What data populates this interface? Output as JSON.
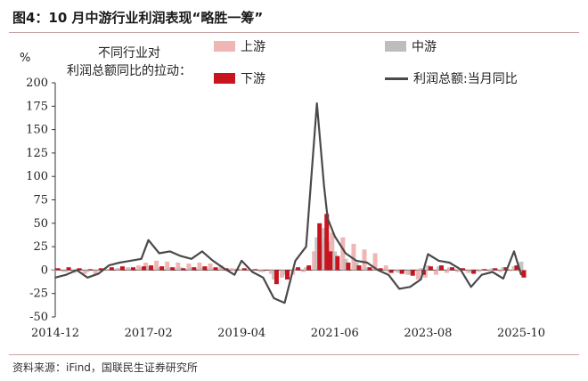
{
  "header": {
    "title": "图4：10 月中游行业利润表现“略胜一筹”"
  },
  "source": "资料来源：iFind，国联民生证券研究所",
  "chart_data": {
    "type": "bar",
    "title": "",
    "ylabel": "%",
    "legend_title_line1": "不同行业对",
    "legend_title_line2": "利润总额同比的拉动：",
    "ylim": [
      -50,
      200
    ],
    "yticks": [
      -50,
      -25,
      0,
      25,
      50,
      75,
      100,
      125,
      150,
      175,
      200
    ],
    "x_tick_labels": [
      "2014-12",
      "2017-02",
      "2019-04",
      "2021-06",
      "2023-08",
      "2025-10"
    ],
    "x_range": [
      "2014-12",
      "2025-10"
    ],
    "colors": {
      "upstream": "#f0b5b5",
      "midstream": "#bdbdbd",
      "downstream": "#c8141e",
      "total": "#4a4a4a"
    },
    "series": [
      {
        "name": "上游",
        "kind": "bar",
        "points": [
          [
            "2014-12",
            1
          ],
          [
            "2015-03",
            -2
          ],
          [
            "2015-06",
            -3
          ],
          [
            "2015-09",
            -4
          ],
          [
            "2015-12",
            -5
          ],
          [
            "2016-03",
            1
          ],
          [
            "2016-06",
            2
          ],
          [
            "2016-09",
            3
          ],
          [
            "2016-12",
            5
          ],
          [
            "2017-02",
            8
          ],
          [
            "2017-05",
            10
          ],
          [
            "2017-08",
            9
          ],
          [
            "2017-11",
            8
          ],
          [
            "2018-02",
            7
          ],
          [
            "2018-05",
            8
          ],
          [
            "2018-08",
            7
          ],
          [
            "2018-11",
            5
          ],
          [
            "2019-02",
            2
          ],
          [
            "2019-04",
            1
          ],
          [
            "2019-07",
            -1
          ],
          [
            "2019-10",
            -2
          ],
          [
            "2020-01",
            -4
          ],
          [
            "2020-04",
            -8
          ],
          [
            "2020-07",
            -5
          ],
          [
            "2020-10",
            -2
          ],
          [
            "2021-01",
            20
          ],
          [
            "2021-03",
            28
          ],
          [
            "2021-04",
            34
          ],
          [
            "2021-06",
            40
          ],
          [
            "2021-09",
            35
          ],
          [
            "2021-12",
            28
          ],
          [
            "2022-03",
            22
          ],
          [
            "2022-06",
            18
          ],
          [
            "2022-09",
            5
          ],
          [
            "2022-12",
            -2
          ],
          [
            "2023-03",
            -5
          ],
          [
            "2023-06",
            -10
          ],
          [
            "2023-08",
            -8
          ],
          [
            "2023-11",
            -5
          ],
          [
            "2024-02",
            -3
          ],
          [
            "2024-05",
            -2
          ],
          [
            "2024-08",
            -3
          ],
          [
            "2024-11",
            -2
          ],
          [
            "2025-02",
            -1
          ],
          [
            "2025-05",
            -2
          ],
          [
            "2025-08",
            -1
          ],
          [
            "2025-10",
            -1
          ]
        ]
      },
      {
        "name": "中游",
        "kind": "bar",
        "points": [
          [
            "2014-12",
            -1
          ],
          [
            "2015-03",
            -2
          ],
          [
            "2015-06",
            -1
          ],
          [
            "2015-09",
            -2
          ],
          [
            "2015-12",
            -1
          ],
          [
            "2016-03",
            1
          ],
          [
            "2016-06",
            2
          ],
          [
            "2016-09",
            2
          ],
          [
            "2016-12",
            3
          ],
          [
            "2017-02",
            4
          ],
          [
            "2017-05",
            3
          ],
          [
            "2017-08",
            3
          ],
          [
            "2017-11",
            3
          ],
          [
            "2018-02",
            3
          ],
          [
            "2018-05",
            3
          ],
          [
            "2018-08",
            2
          ],
          [
            "2018-11",
            1
          ],
          [
            "2019-02",
            -1
          ],
          [
            "2019-04",
            0
          ],
          [
            "2019-07",
            -1
          ],
          [
            "2019-10",
            -2
          ],
          [
            "2020-01",
            -10
          ],
          [
            "2020-04",
            -5
          ],
          [
            "2020-07",
            2
          ],
          [
            "2020-10",
            3
          ],
          [
            "2021-01",
            35
          ],
          [
            "2021-03",
            45
          ],
          [
            "2021-04",
            30
          ],
          [
            "2021-06",
            20
          ],
          [
            "2021-09",
            12
          ],
          [
            "2021-12",
            8
          ],
          [
            "2022-03",
            3
          ],
          [
            "2022-06",
            0
          ],
          [
            "2022-09",
            -2
          ],
          [
            "2022-12",
            -3
          ],
          [
            "2023-03",
            -5
          ],
          [
            "2023-06",
            2
          ],
          [
            "2023-08",
            5
          ],
          [
            "2023-11",
            4
          ],
          [
            "2024-02",
            3
          ],
          [
            "2024-05",
            2
          ],
          [
            "2024-08",
            -3
          ],
          [
            "2024-11",
            1
          ],
          [
            "2025-02",
            2
          ],
          [
            "2025-05",
            3
          ],
          [
            "2025-08",
            4
          ],
          [
            "2025-10",
            9
          ]
        ]
      },
      {
        "name": "下游",
        "kind": "bar",
        "points": [
          [
            "2014-12",
            2
          ],
          [
            "2015-03",
            3
          ],
          [
            "2015-06",
            2
          ],
          [
            "2015-09",
            1
          ],
          [
            "2015-12",
            2
          ],
          [
            "2016-03",
            3
          ],
          [
            "2016-06",
            4
          ],
          [
            "2016-09",
            3
          ],
          [
            "2016-12",
            4
          ],
          [
            "2017-02",
            5
          ],
          [
            "2017-05",
            4
          ],
          [
            "2017-08",
            3
          ],
          [
            "2017-11",
            2
          ],
          [
            "2018-02",
            3
          ],
          [
            "2018-05",
            4
          ],
          [
            "2018-08",
            3
          ],
          [
            "2018-11",
            2
          ],
          [
            "2019-02",
            1
          ],
          [
            "2019-04",
            2
          ],
          [
            "2019-07",
            1
          ],
          [
            "2019-10",
            0
          ],
          [
            "2020-01",
            -15
          ],
          [
            "2020-04",
            -10
          ],
          [
            "2020-07",
            3
          ],
          [
            "2020-10",
            5
          ],
          [
            "2021-01",
            50
          ],
          [
            "2021-03",
            60
          ],
          [
            "2021-04",
            20
          ],
          [
            "2021-06",
            15
          ],
          [
            "2021-09",
            8
          ],
          [
            "2021-12",
            5
          ],
          [
            "2022-03",
            3
          ],
          [
            "2022-06",
            2
          ],
          [
            "2022-09",
            -3
          ],
          [
            "2022-12",
            -4
          ],
          [
            "2023-03",
            -6
          ],
          [
            "2023-06",
            -5
          ],
          [
            "2023-08",
            4
          ],
          [
            "2023-11",
            5
          ],
          [
            "2024-02",
            3
          ],
          [
            "2024-05",
            2
          ],
          [
            "2024-08",
            -4
          ],
          [
            "2024-11",
            1
          ],
          [
            "2025-02",
            2
          ],
          [
            "2025-05",
            3
          ],
          [
            "2025-08",
            5
          ],
          [
            "2025-10",
            -8
          ]
        ]
      },
      {
        "name": "利润总额:当月同比",
        "kind": "line",
        "points": [
          [
            "2014-12",
            -8
          ],
          [
            "2015-03",
            -5
          ],
          [
            "2015-06",
            0
          ],
          [
            "2015-09",
            -8
          ],
          [
            "2015-12",
            -4
          ],
          [
            "2016-03",
            5
          ],
          [
            "2016-06",
            8
          ],
          [
            "2016-09",
            10
          ],
          [
            "2016-12",
            12
          ],
          [
            "2017-02",
            32
          ],
          [
            "2017-05",
            18
          ],
          [
            "2017-08",
            20
          ],
          [
            "2017-11",
            15
          ],
          [
            "2018-02",
            12
          ],
          [
            "2018-05",
            20
          ],
          [
            "2018-08",
            10
          ],
          [
            "2018-11",
            2
          ],
          [
            "2019-02",
            -5
          ],
          [
            "2019-04",
            10
          ],
          [
            "2019-07",
            -2
          ],
          [
            "2019-10",
            -8
          ],
          [
            "2020-01",
            -30
          ],
          [
            "2020-04",
            -35
          ],
          [
            "2020-07",
            10
          ],
          [
            "2020-10",
            25
          ],
          [
            "2021-01",
            178
          ],
          [
            "2021-03",
            90
          ],
          [
            "2021-04",
            55
          ],
          [
            "2021-06",
            36
          ],
          [
            "2021-09",
            18
          ],
          [
            "2021-12",
            10
          ],
          [
            "2022-03",
            8
          ],
          [
            "2022-06",
            0
          ],
          [
            "2022-09",
            -5
          ],
          [
            "2022-12",
            -20
          ],
          [
            "2023-03",
            -18
          ],
          [
            "2023-06",
            -10
          ],
          [
            "2023-08",
            17
          ],
          [
            "2023-11",
            10
          ],
          [
            "2024-02",
            8
          ],
          [
            "2024-05",
            1
          ],
          [
            "2024-08",
            -18
          ],
          [
            "2024-11",
            -5
          ],
          [
            "2025-02",
            -2
          ],
          [
            "2025-05",
            -9
          ],
          [
            "2025-08",
            20
          ],
          [
            "2025-10",
            -5
          ]
        ]
      }
    ]
  }
}
